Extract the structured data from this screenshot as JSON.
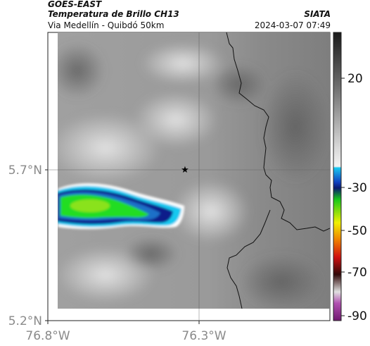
{
  "header": {
    "satellite": "GOES-EAST",
    "product_title": "Temperatura de Brillo CH13",
    "brand": "SIATA",
    "region": "Via Medellín - Quibdó 50km",
    "timestamp": "2024-03-07 07:49"
  },
  "map": {
    "lat_ticks": [
      "5.7°N",
      "5.2°N"
    ],
    "lon_ticks": [
      "76.8°W",
      "76.3°W"
    ],
    "marker": "station-star"
  },
  "colorbar": {
    "ticks": [
      "20",
      "-30",
      "-50",
      "-70",
      "-90"
    ],
    "unit_scale": "brightness temperature (°C)"
  },
  "colors": {
    "cloud_core": "#22dd22",
    "cloud_edge_dark": "#0a1a8a",
    "cloud_edge_cyan": "#19c8f0",
    "ground_gray": "#8c8c8c"
  }
}
